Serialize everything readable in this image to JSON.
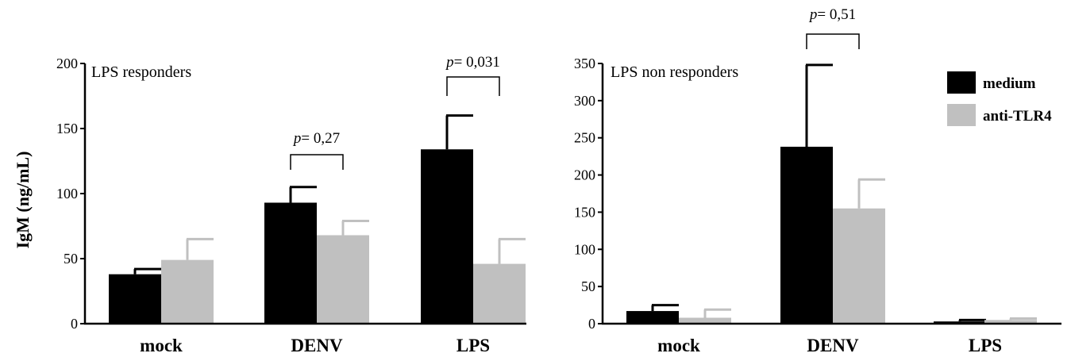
{
  "colors": {
    "medium": "#000000",
    "anti_tlr4": "#c0c0c0"
  },
  "legend": [
    {
      "label": "medium",
      "color": "#000000"
    },
    {
      "label": "anti-TLR4",
      "color": "#c0c0c0"
    }
  ],
  "chart_data": [
    {
      "type": "bar",
      "title": "LPS  responders",
      "ylabel": "IgM (ng/mL)",
      "xlabel": "",
      "categories": [
        "mock",
        "DENV",
        "LPS"
      ],
      "ylim": [
        0,
        200
      ],
      "yticks": [
        0,
        50,
        100,
        150,
        200
      ],
      "series": [
        {
          "name": "medium",
          "values": [
            38,
            93,
            134
          ],
          "errors": [
            4,
            12,
            26
          ]
        },
        {
          "name": "anti-TLR4",
          "values": [
            49,
            68,
            46
          ],
          "errors": [
            16,
            11,
            19
          ]
        }
      ],
      "annotations": [
        {
          "prefix": "p",
          "text": "= 0,27",
          "category": "DENV"
        },
        {
          "prefix": "p",
          "text": "= 0,031",
          "category": "LPS"
        }
      ],
      "grid": false
    },
    {
      "type": "bar",
      "title": "LPS  non responders",
      "ylabel": "",
      "xlabel": "",
      "categories": [
        "mock",
        "DENV",
        "LPS"
      ],
      "ylim": [
        0,
        350
      ],
      "yticks": [
        0,
        50,
        100,
        150,
        200,
        250,
        300,
        350
      ],
      "series": [
        {
          "name": "medium",
          "values": [
            17,
            238,
            3
          ],
          "errors": [
            8,
            110,
            2
          ]
        },
        {
          "name": "anti-TLR4",
          "values": [
            8,
            155,
            5
          ],
          "errors": [
            11,
            39,
            2
          ]
        }
      ],
      "annotations": [
        {
          "prefix": "p",
          "text": "= 0,51",
          "category": "DENV"
        }
      ],
      "legend_position": "top-right",
      "grid": false
    }
  ]
}
